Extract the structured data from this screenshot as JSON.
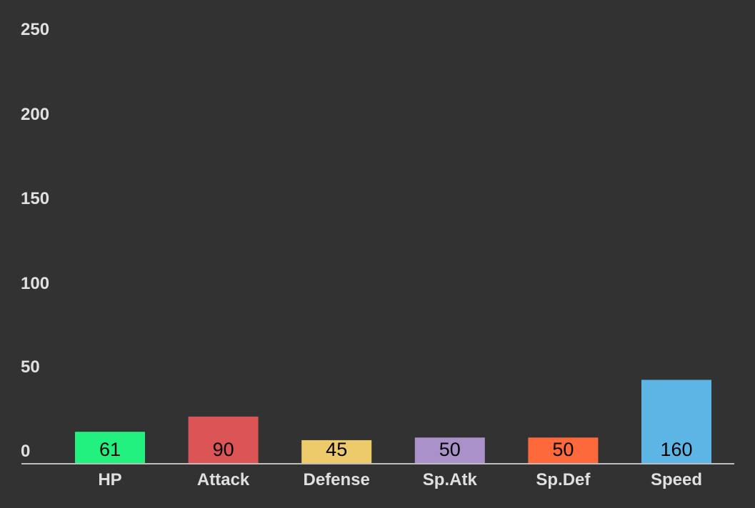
{
  "chart_data": {
    "type": "bar",
    "categories": [
      "HP",
      "Attack",
      "Defense",
      "Sp.Atk",
      "Sp.Def",
      "Speed"
    ],
    "values": [
      61,
      90,
      45,
      50,
      50,
      160
    ],
    "value_labels": [
      "61",
      "90",
      "45",
      "50",
      "50",
      "160"
    ],
    "colors": [
      "#22f17f",
      "#db5456",
      "#edcb6b",
      "#ab91c9",
      "#fe693b",
      "#5db5e5"
    ],
    "ylim": [
      0,
      250
    ],
    "yticks": [
      0,
      50,
      100,
      150,
      200,
      250
    ],
    "ytick_labels": [
      "0",
      "50",
      "100",
      "150",
      "200",
      "250"
    ],
    "grid": false,
    "background": "#323232",
    "axis_color": "#bdbdbd",
    "label_color": "#e0e0e0",
    "value_label_color": "#000000"
  }
}
